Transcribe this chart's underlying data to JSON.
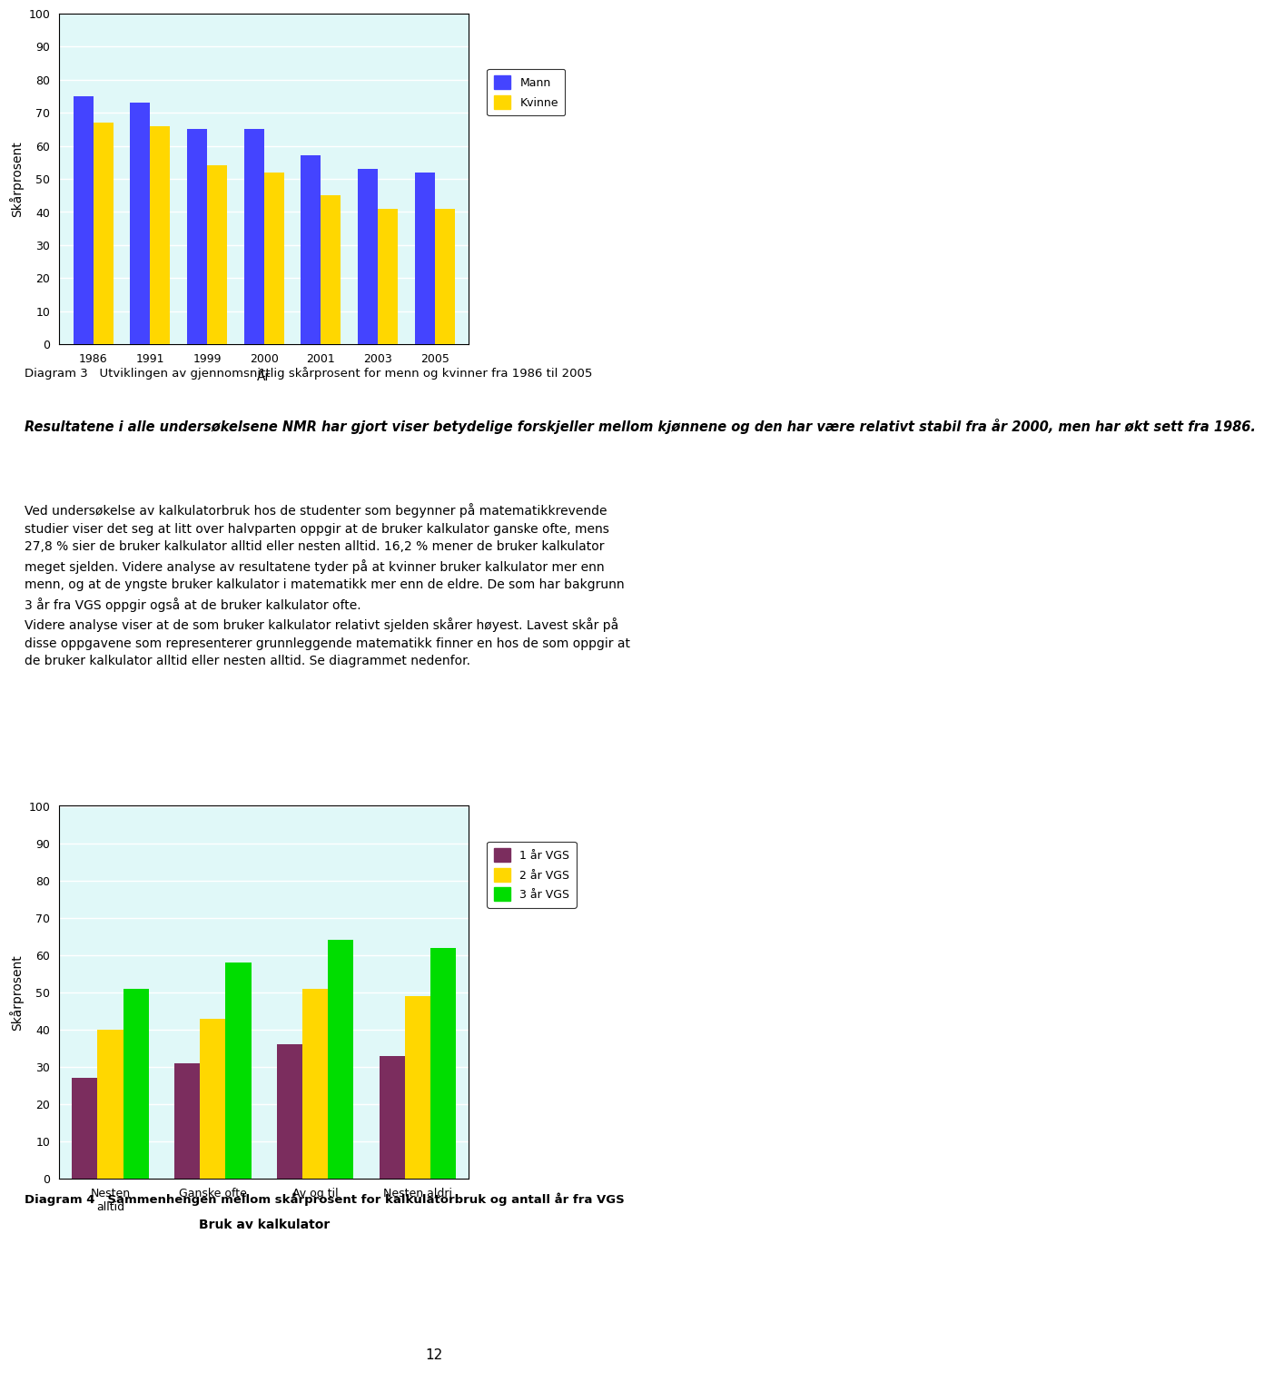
{
  "chart1": {
    "years": [
      "1986",
      "1991",
      "1999",
      "2000",
      "2001",
      "2003",
      "2005"
    ],
    "mann": [
      75,
      73,
      65,
      65,
      57,
      53,
      52
    ],
    "kvinne": [
      67,
      66,
      54,
      52,
      45,
      41,
      41
    ],
    "mann_color": "#4444FF",
    "kvinne_color": "#FFD700",
    "ylabel": "Skårprosent",
    "xlabel": "År",
    "ylim": [
      0,
      100
    ],
    "yticks": [
      0,
      10,
      20,
      30,
      40,
      50,
      60,
      70,
      80,
      90,
      100
    ],
    "legend_mann": "Mann",
    "legend_kvinne": "Kvinne",
    "bg_color": "#E0F8F8"
  },
  "diagram3_caption": "Diagram 3   Utviklingen av gjennomsnittlig skårprosent for menn og kvinner fra 1986 til 2005",
  "bold_italic_text": "Resultatene i alle undersøkelsene NMR har gjort viser betydelige forskjeller mellom kjønnene og den har være relativt stabil fra år 2000, men har økt sett fra 1986.",
  "body_text": "Ved undersøkelse av kalkulatorbruk hos de studenter som begynner på matematikkrevende\nstudier viser det seg at litt over halvparten oppgir at de bruker kalkulator ganske ofte, mens\n27,8 % sier de bruker kalkulator alltid eller nesten alltid. 16,2 % mener de bruker kalkulator\nmeget sjelden. Videre analyse av resultatene tyder på at kvinner bruker kalkulator mer enn\nmenn, og at de yngste bruker kalkulator i matematikk mer enn de eldre. De som har bakgrunn\n3 år fra VGS oppgir også at de bruker kalkulator ofte.\nVidere analyse viser at de som bruker kalkulator relativt sjelden skårer høyest. Lavest skår på\ndisse oppgavene som representerer grunnleggende matematikk finner en hos de som oppgir at\nde bruker kalkulator alltid eller nesten alltid. Se diagrammet nedenfor.",
  "chart2": {
    "categories": [
      "Nesten\nalltid",
      "Ganske ofte",
      "Av og til",
      "Nesten aldri"
    ],
    "ar1": [
      27,
      31,
      36,
      33
    ],
    "ar2": [
      40,
      43,
      51,
      49
    ],
    "ar3": [
      51,
      58,
      64,
      62
    ],
    "ar1_color": "#7B2D5E",
    "ar2_color": "#FFD700",
    "ar3_color": "#00DD00",
    "ylabel": "Skårprosent",
    "xlabel": "Bruk av kalkulator",
    "ylim": [
      0,
      100
    ],
    "yticks": [
      0,
      10,
      20,
      30,
      40,
      50,
      60,
      70,
      80,
      90,
      100
    ],
    "legend_ar1": "1 år VGS",
    "legend_ar2": "2 år VGS",
    "legend_ar3": "3 år VGS",
    "bg_color": "#E0F8F8"
  },
  "diagram4_caption": "Diagram 4   Sammenhengen mellom skårprosent for kalkulatorbruk og antall år fra VGS",
  "page_number": "12"
}
